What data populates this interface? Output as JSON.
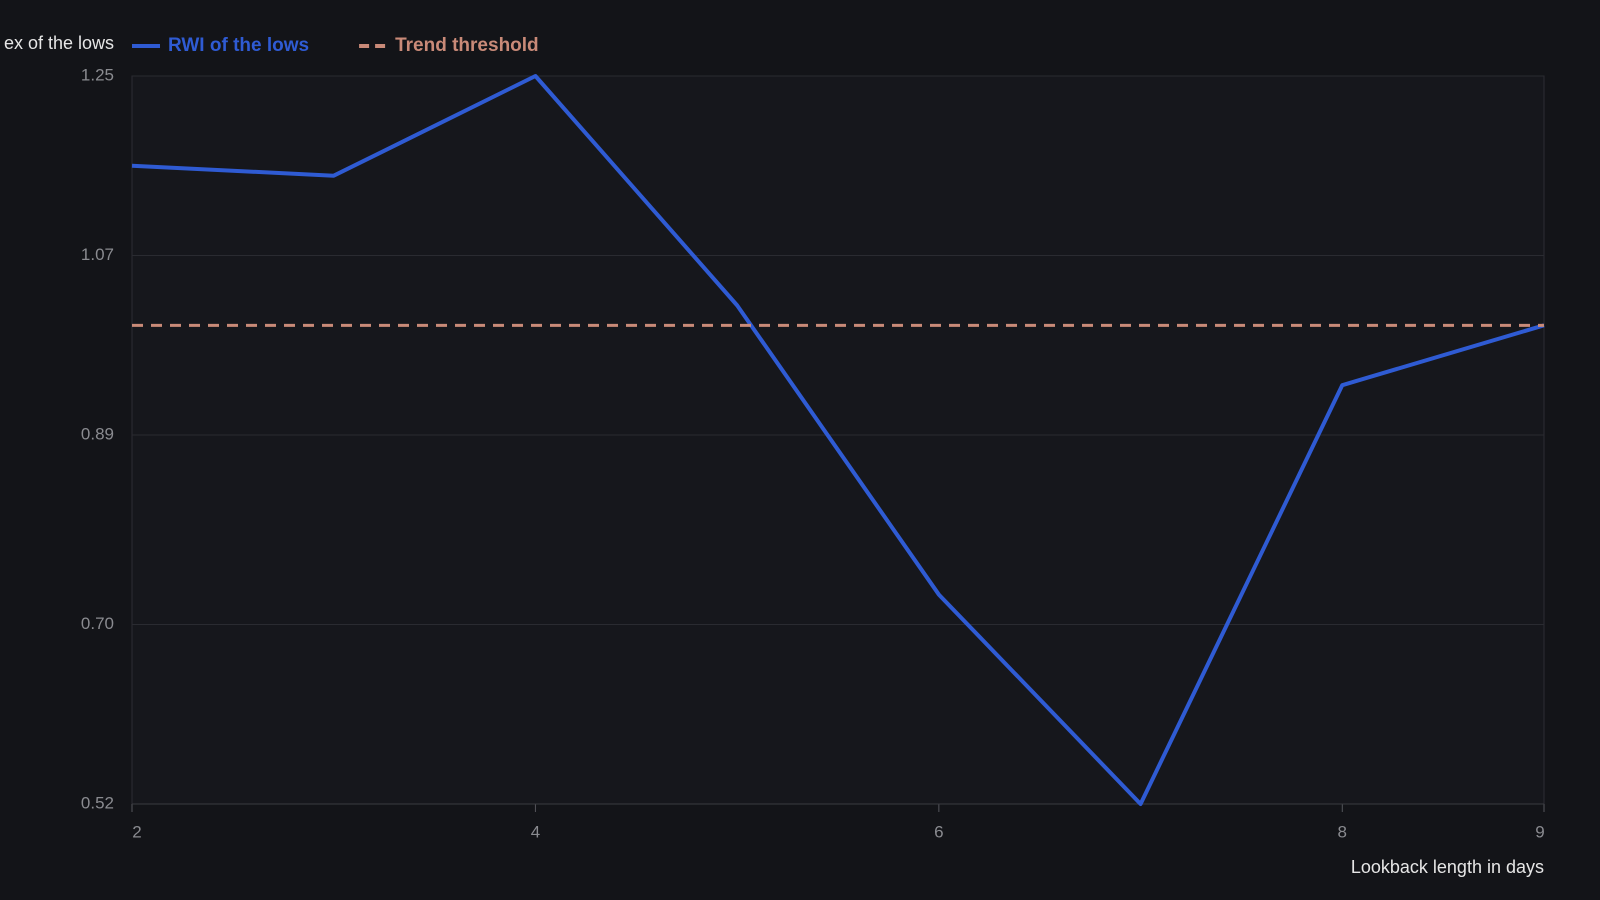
{
  "chart_data": {
    "type": "line",
    "y_label": "ex of the lows",
    "x_label": "Lookback length in days",
    "x": [
      2,
      3,
      4,
      5,
      6,
      7,
      8,
      9
    ],
    "series": [
      {
        "name": "RWI of the lows",
        "color": "#2f5bd3",
        "dashed": false,
        "values": [
          1.16,
          1.15,
          1.25,
          1.02,
          0.73,
          0.52,
          0.94,
          1.0
        ]
      },
      {
        "name": "Trend threshold",
        "color": "#c98a78",
        "dashed": true,
        "values": [
          1.0,
          1.0,
          1.0,
          1.0,
          1.0,
          1.0,
          1.0,
          1.0
        ]
      }
    ],
    "xlim": [
      2,
      9
    ],
    "xticks": [
      2,
      4,
      6,
      8,
      9
    ],
    "ylim": [
      0.52,
      1.25
    ],
    "yticks": [
      0.52,
      {
        "value": 0.7,
        "label": "0.70"
      },
      0.89,
      1.07,
      1.25
    ],
    "grid": true
  }
}
